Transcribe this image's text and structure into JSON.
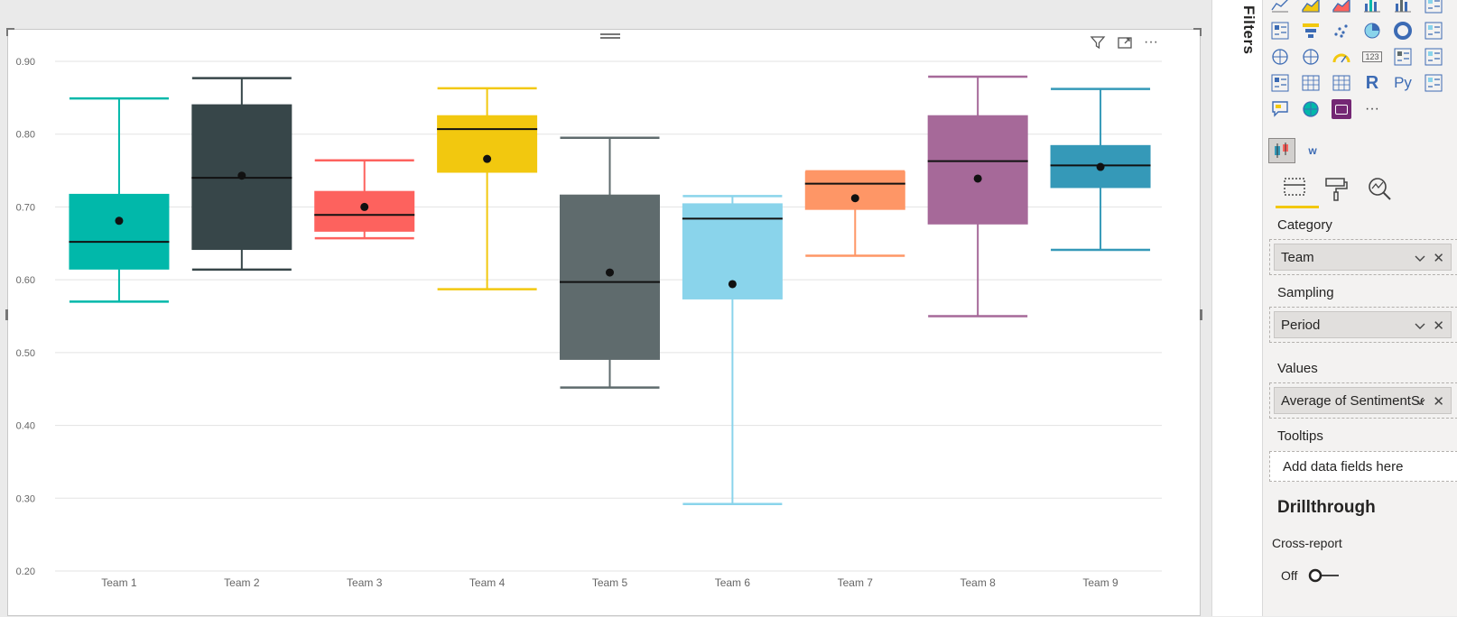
{
  "visual_header": {
    "filter_icon": "filter-icon",
    "focus_icon": "focus-mode-icon",
    "more_icon": "more-options-icon",
    "more_label": "···"
  },
  "chart_data": {
    "type": "boxplot",
    "categories": [
      "Team 1",
      "Team 2",
      "Team 3",
      "Team 4",
      "Team 5",
      "Team 6",
      "Team 7",
      "Team 8",
      "Team 9"
    ],
    "colors": [
      "#01b8aa",
      "#374649",
      "#fd625e",
      "#f2c80f",
      "#5f6b6d",
      "#8ad4eb",
      "#fe9666",
      "#a66999",
      "#3599b8"
    ],
    "series": [
      {
        "category": "Team 1",
        "min": 0.57,
        "q1": 0.614,
        "median": 0.652,
        "q3": 0.718,
        "max": 0.849,
        "mean": 0.681
      },
      {
        "category": "Team 2",
        "min": 0.614,
        "q1": 0.641,
        "median": 0.74,
        "q3": 0.841,
        "max": 0.877,
        "mean": 0.743
      },
      {
        "category": "Team 3",
        "min": 0.657,
        "q1": 0.666,
        "median": 0.689,
        "q3": 0.722,
        "max": 0.764,
        "mean": 0.7
      },
      {
        "category": "Team 4",
        "min": 0.587,
        "q1": 0.747,
        "median": 0.807,
        "q3": 0.826,
        "max": 0.863,
        "mean": 0.766
      },
      {
        "category": "Team 5",
        "min": 0.452,
        "q1": 0.49,
        "median": 0.597,
        "q3": 0.717,
        "max": 0.795,
        "mean": 0.61
      },
      {
        "category": "Team 6",
        "min": 0.292,
        "q1": 0.573,
        "median": 0.684,
        "q3": 0.705,
        "max": 0.715,
        "mean": 0.594
      },
      {
        "category": "Team 7",
        "min": 0.633,
        "q1": 0.696,
        "median": 0.732,
        "q3": 0.749,
        "max": 0.749,
        "mean": 0.712
      },
      {
        "category": "Team 8",
        "min": 0.55,
        "q1": 0.676,
        "median": 0.763,
        "q3": 0.826,
        "max": 0.879,
        "mean": 0.739
      },
      {
        "category": "Team 9",
        "min": 0.641,
        "q1": 0.726,
        "median": 0.757,
        "q3": 0.785,
        "max": 0.862,
        "mean": 0.755
      }
    ],
    "y_ticks": [
      "0.90",
      "0.80",
      "0.70",
      "0.60",
      "0.50",
      "0.40",
      "0.30",
      "0.20"
    ],
    "ylim": [
      0.2,
      0.9
    ],
    "grid": true,
    "legend": "none",
    "title": "",
    "xlabel": "",
    "ylabel": ""
  },
  "filters_pane": {
    "label": "Filters"
  },
  "viz_pane": {
    "viz_icons": [
      "line-chart-icon",
      "area-chart-icon",
      "stacked-area-icon",
      "line-clustered-column-icon",
      "line-stacked-column-icon",
      "ribbon-chart-icon",
      "waterfall-icon",
      "funnel-icon",
      "scatter-icon",
      "pie-icon",
      "donut-icon",
      "treemap-icon",
      "map-icon",
      "filled-map-icon",
      "gauge-icon",
      "card-icon",
      "multirow-card-icon",
      "kpi-icon",
      "slicer-icon",
      "table-icon",
      "matrix-icon",
      "r-visual-icon",
      "python-visual-icon",
      "key-influencers-icon",
      "qa-icon",
      "arcgis-icon",
      "custom-visual-icon",
      "more-visuals-icon"
    ],
    "r_label": "R",
    "py_label": "Py",
    "card_label": "123",
    "more_label": "···",
    "custom_visuals": [
      "box-whisker-visual-icon",
      "word-cloud-visual-icon"
    ],
    "word_label": "w",
    "tabs": [
      "fields-tab-icon",
      "format-tab-icon",
      "analytics-tab-icon"
    ],
    "wells": {
      "category_label": "Category",
      "category_value": "Team",
      "sampling_label": "Sampling",
      "sampling_value": "Period",
      "values_label": "Values",
      "values_value": "Average of SentimentScore",
      "tooltips_label": "Tooltips",
      "tooltips_placeholder": "Add data fields here"
    },
    "drillthrough": {
      "title": "Drillthrough",
      "cross_report_label": "Cross-report",
      "toggle_state": "Off"
    },
    "accent_color": "#f2c80f"
  }
}
